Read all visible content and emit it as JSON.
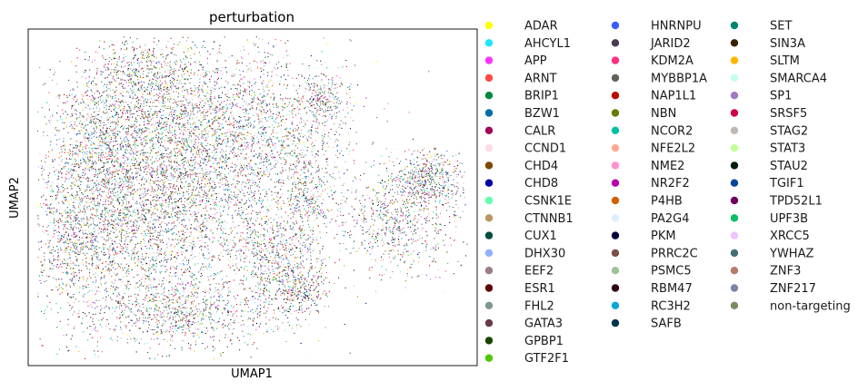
{
  "chart_data": {
    "type": "scatter",
    "title": "perturbation",
    "xlabel": "UMAP1",
    "ylabel": "UMAP2",
    "ticks": "none",
    "grid": false,
    "legend_placement": "right, outside plot, 3 columns",
    "categories": [
      {
        "name": "ADAR",
        "color": "#ffff00"
      },
      {
        "name": "AHCYL1",
        "color": "#1ce6ff"
      },
      {
        "name": "APP",
        "color": "#ff34ff"
      },
      {
        "name": "ARNT",
        "color": "#ff4a46"
      },
      {
        "name": "BRIP1",
        "color": "#008941"
      },
      {
        "name": "BZW1",
        "color": "#006fa6"
      },
      {
        "name": "CALR",
        "color": "#a30059"
      },
      {
        "name": "CCND1",
        "color": "#ffdbe5"
      },
      {
        "name": "CHD4",
        "color": "#7a4900"
      },
      {
        "name": "CHD8",
        "color": "#0000a6"
      },
      {
        "name": "CSNK1E",
        "color": "#63ffac"
      },
      {
        "name": "CTNNB1",
        "color": "#b79762"
      },
      {
        "name": "CUX1",
        "color": "#004d43"
      },
      {
        "name": "DHX30",
        "color": "#8fb0ff"
      },
      {
        "name": "EEF2",
        "color": "#997d87"
      },
      {
        "name": "ESR1",
        "color": "#5a0007"
      },
      {
        "name": "FHL2",
        "color": "#809693"
      },
      {
        "name": "GATA3",
        "color": "#6a3a4c"
      },
      {
        "name": "GPBP1",
        "color": "#1b4400"
      },
      {
        "name": "GTF2F1",
        "color": "#4fc601"
      },
      {
        "name": "HNRNPU",
        "color": "#3b5dff"
      },
      {
        "name": "JARID2",
        "color": "#4a3b53"
      },
      {
        "name": "KDM2A",
        "color": "#ff2f80"
      },
      {
        "name": "MYBBP1A",
        "color": "#61615a"
      },
      {
        "name": "NAP1L1",
        "color": "#ba0900"
      },
      {
        "name": "NBN",
        "color": "#6b7900"
      },
      {
        "name": "NCOR2",
        "color": "#00c2a0"
      },
      {
        "name": "NFE2L2",
        "color": "#ffaa92"
      },
      {
        "name": "NME2",
        "color": "#ff90c9"
      },
      {
        "name": "NR2F2",
        "color": "#b903aa"
      },
      {
        "name": "P4HB",
        "color": "#d16100"
      },
      {
        "name": "PA2G4",
        "color": "#ddefff"
      },
      {
        "name": "PKM",
        "color": "#000035"
      },
      {
        "name": "PRRC2C",
        "color": "#7b4f4b"
      },
      {
        "name": "PSMC5",
        "color": "#a1c299"
      },
      {
        "name": "RBM47",
        "color": "#300018"
      },
      {
        "name": "RC3H2",
        "color": "#0aa6d8"
      },
      {
        "name": "SAFB",
        "color": "#013349"
      },
      {
        "name": "SET",
        "color": "#00846f"
      },
      {
        "name": "SIN3A",
        "color": "#372101"
      },
      {
        "name": "SLTM",
        "color": "#ffb500"
      },
      {
        "name": "SMARCA4",
        "color": "#c2ffed"
      },
      {
        "name": "SP1",
        "color": "#a079bf"
      },
      {
        "name": "SRSF5",
        "color": "#cc0744"
      },
      {
        "name": "STAG2",
        "color": "#c0b9b2"
      },
      {
        "name": "STAT3",
        "color": "#c2ff99"
      },
      {
        "name": "STAU2",
        "color": "#001e09"
      },
      {
        "name": "TGIF1",
        "color": "#00489c"
      },
      {
        "name": "TPD52L1",
        "color": "#6f0062"
      },
      {
        "name": "UPF3B",
        "color": "#0cbd66"
      },
      {
        "name": "XRCC5",
        "color": "#eec3ff"
      },
      {
        "name": "YWHAZ",
        "color": "#456d75"
      },
      {
        "name": "ZNF3",
        "color": "#b77b68"
      },
      {
        "name": "ZNF217",
        "color": "#7a87a1"
      },
      {
        "name": "non-targeting",
        "color": "#788d66"
      }
    ],
    "clusters": [
      {
        "cx": 0.22,
        "cy": 0.56,
        "sx": 0.11,
        "sy": 0.19,
        "n": 2600
      },
      {
        "cx": 0.4,
        "cy": 0.45,
        "sx": 0.13,
        "sy": 0.2,
        "n": 2400
      },
      {
        "cx": 0.3,
        "cy": 0.3,
        "sx": 0.1,
        "sy": 0.12,
        "n": 1300
      },
      {
        "cx": 0.52,
        "cy": 0.3,
        "sx": 0.1,
        "sy": 0.12,
        "n": 1100
      },
      {
        "cx": 0.14,
        "cy": 0.35,
        "sx": 0.05,
        "sy": 0.12,
        "n": 700
      },
      {
        "cx": 0.1,
        "cy": 0.62,
        "sx": 0.04,
        "sy": 0.1,
        "n": 500
      },
      {
        "cx": 0.35,
        "cy": 0.84,
        "sx": 0.09,
        "sy": 0.05,
        "n": 700
      },
      {
        "cx": 0.55,
        "cy": 0.7,
        "sx": 0.05,
        "sy": 0.09,
        "n": 600
      },
      {
        "cx": 0.62,
        "cy": 0.5,
        "sx": 0.03,
        "sy": 0.1,
        "n": 350
      },
      {
        "cx": 0.61,
        "cy": 0.78,
        "sx": 0.03,
        "sy": 0.04,
        "n": 250
      },
      {
        "cx": 0.25,
        "cy": 0.12,
        "sx": 0.05,
        "sy": 0.05,
        "n": 400
      },
      {
        "cx": 0.82,
        "cy": 0.57,
        "sx": 0.07,
        "sy": 0.08,
        "n": 800
      },
      {
        "cx": 0.89,
        "cy": 0.44,
        "sx": 0.04,
        "sy": 0.04,
        "n": 500
      },
      {
        "cx": 0.66,
        "cy": 0.21,
        "sx": 0.025,
        "sy": 0.035,
        "n": 220
      }
    ]
  }
}
